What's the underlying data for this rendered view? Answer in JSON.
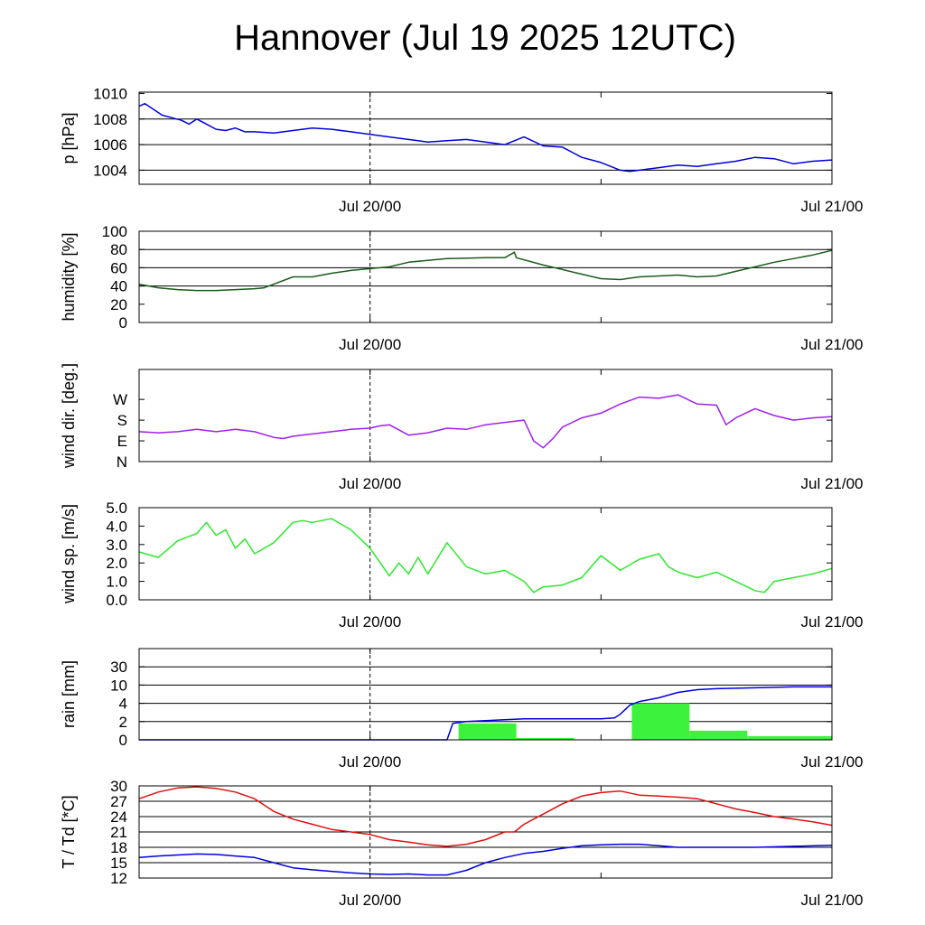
{
  "title": "Hannover (Jul 19 2025 12UTC)",
  "x_tick_labels": [
    "Jul 20/00",
    "Jul 21/00"
  ],
  "chart_data": [
    {
      "id": "pressure",
      "type": "line",
      "ylabel": "p [hPa]",
      "xlim_hours": [
        0,
        36
      ],
      "ylim": [
        1002.9,
        1010.1
      ],
      "yticks": [
        1004,
        1006,
        1008,
        1010
      ],
      "ytick_labels": [
        "1004",
        "1006",
        "1008",
        "1010"
      ],
      "grid_y": [
        1004,
        1006,
        1008
      ],
      "series": [
        {
          "color": "#0000e0",
          "x": [
            0,
            0.3,
            0.7,
            1.2,
            1.7,
            2.2,
            2.6,
            3.0,
            3.5,
            4.0,
            4.5,
            5.0,
            5.5,
            6.0,
            7.0,
            8.0,
            9.0,
            10.0,
            11.0,
            12.0,
            13.0,
            14.0,
            15.0,
            16.0,
            17.0,
            18.0,
            19.0,
            20.0,
            21.0,
            22.0,
            23.0,
            24.0,
            25.0,
            25.5,
            26.0,
            27.0,
            28.0,
            29.0,
            30.0,
            31.0,
            32.0,
            33.0,
            34.0,
            35.0,
            36.0
          ],
          "y": [
            1009.0,
            1009.2,
            1008.8,
            1008.3,
            1008.1,
            1007.9,
            1007.6,
            1008.0,
            1007.6,
            1007.2,
            1007.1,
            1007.3,
            1007.0,
            1007.0,
            1006.9,
            1007.1,
            1007.3,
            1007.2,
            1007.0,
            1006.8,
            1006.6,
            1006.4,
            1006.2,
            1006.3,
            1006.4,
            1006.2,
            1006.0,
            1006.6,
            1005.9,
            1005.8,
            1005.0,
            1004.6,
            1004.0,
            1003.9,
            1004.0,
            1004.2,
            1004.4,
            1004.3,
            1004.5,
            1004.7,
            1005.0,
            1004.9,
            1004.5,
            1004.7,
            1004.8
          ]
        }
      ]
    },
    {
      "id": "humidity",
      "type": "line",
      "ylabel": "humidity [%]",
      "xlim_hours": [
        0,
        36
      ],
      "ylim": [
        0,
        100
      ],
      "yticks": [
        0,
        20,
        40,
        60,
        80,
        100
      ],
      "ytick_labels": [
        "0",
        "20",
        "40",
        "60",
        "80",
        "100"
      ],
      "grid_y": [
        40,
        60,
        80,
        100
      ],
      "series": [
        {
          "color": "#1a5c1a",
          "x": [
            0,
            1,
            2,
            3,
            4,
            5,
            6,
            6.5,
            7,
            8,
            9,
            10,
            11,
            12,
            13,
            14,
            16,
            18,
            19,
            19.5,
            19.6,
            21,
            22,
            23,
            24,
            25,
            26,
            27,
            28,
            29,
            30,
            31,
            32,
            33,
            34,
            35,
            36
          ],
          "y": [
            42,
            38,
            36,
            35,
            35,
            36,
            37,
            38,
            42,
            50,
            50,
            54,
            57,
            59,
            61,
            66,
            70,
            71,
            71,
            77,
            71,
            63,
            58,
            53,
            48,
            47,
            50,
            51,
            52,
            50,
            51,
            56,
            61,
            66,
            70,
            74,
            79
          ]
        }
      ]
    },
    {
      "id": "wind_direction",
      "type": "line",
      "ylabel": "wind dir. [deg.]",
      "xlim_hours": [
        0,
        36
      ],
      "ylim": [
        0,
        400
      ],
      "yticks": [
        0,
        90,
        180,
        270
      ],
      "ytick_labels": [
        "N",
        "E",
        "S",
        "W"
      ],
      "grid_y": [],
      "series": [
        {
          "color": "#a020f0",
          "x": [
            0,
            1,
            2,
            3,
            4,
            5,
            6,
            7,
            7.5,
            8,
            9,
            10,
            11,
            12,
            12.5,
            13,
            14,
            15,
            16,
            17,
            18,
            19,
            20,
            20.5,
            21,
            21.5,
            22,
            23,
            24,
            25,
            26,
            27,
            28,
            29,
            30,
            30.5,
            31,
            32,
            33,
            34,
            35,
            36
          ],
          "y": [
            130,
            125,
            130,
            140,
            130,
            140,
            130,
            105,
            100,
            110,
            120,
            130,
            140,
            145,
            155,
            160,
            115,
            125,
            145,
            140,
            160,
            170,
            180,
            90,
            60,
            100,
            150,
            190,
            210,
            250,
            280,
            275,
            290,
            250,
            245,
            160,
            190,
            230,
            200,
            180,
            190,
            195
          ]
        }
      ]
    },
    {
      "id": "wind_speed",
      "type": "line",
      "ylabel": "wind sp. [m/s]",
      "xlim_hours": [
        0,
        36
      ],
      "ylim": [
        0,
        5
      ],
      "yticks": [
        0,
        1,
        2,
        3,
        4,
        5
      ],
      "ytick_labels": [
        "0.0",
        "1.0",
        "2.0",
        "3.0",
        "4.0",
        "5.0"
      ],
      "grid_y": [],
      "series": [
        {
          "color": "#2ee82e",
          "x": [
            0,
            1,
            2,
            3,
            3.5,
            4,
            4.5,
            5,
            5.5,
            6,
            7,
            8,
            8.5,
            9,
            10,
            11,
            12,
            13,
            13.5,
            14,
            14.5,
            15,
            16,
            17,
            18,
            19,
            20,
            20.5,
            21,
            22,
            23,
            24,
            25,
            26,
            27,
            27.5,
            28,
            29,
            30,
            31,
            32,
            32.5,
            33,
            34,
            35,
            36
          ],
          "y": [
            2.6,
            2.3,
            3.2,
            3.6,
            4.2,
            3.5,
            3.8,
            2.8,
            3.3,
            2.5,
            3.1,
            4.2,
            4.3,
            4.2,
            4.4,
            3.8,
            2.8,
            1.3,
            2.0,
            1.4,
            2.3,
            1.4,
            3.1,
            1.8,
            1.4,
            1.6,
            1.0,
            0.4,
            0.7,
            0.8,
            1.2,
            2.4,
            1.6,
            2.2,
            2.5,
            1.8,
            1.5,
            1.2,
            1.5,
            1.0,
            0.5,
            0.4,
            1.0,
            1.2,
            1.4,
            1.7
          ]
        }
      ]
    },
    {
      "id": "rain",
      "type": "bar+line",
      "ylabel": "rain [mm]",
      "xlim_hours": [
        0,
        36
      ],
      "ylim": [
        0,
        5
      ],
      "yticks": [
        0,
        1,
        2,
        3,
        4,
        5
      ],
      "ytick_labels": [
        "0",
        "2",
        "4",
        "10",
        "30",
        ""
      ],
      "grid_y": [
        1,
        2,
        3,
        4
      ],
      "bars": [
        {
          "x_start": 16.6,
          "x_end": 19.6,
          "value": 0.9
        },
        {
          "x_start": 19.6,
          "x_end": 22.6,
          "value": 0.1
        },
        {
          "x_start": 25.6,
          "x_end": 28.6,
          "value": 2.0
        },
        {
          "x_start": 28.6,
          "x_end": 31.6,
          "value": 0.5
        },
        {
          "x_start": 31.6,
          "x_end": 36,
          "value": 0.2
        }
      ],
      "bar_color": "#3cf23c",
      "series": [
        {
          "color": "#0000e0",
          "x": [
            0,
            16,
            16.3,
            17,
            19,
            20,
            21,
            22,
            23,
            24,
            24.7,
            25.0,
            25.5,
            26,
            27,
            28,
            29,
            30,
            32,
            34,
            36
          ],
          "y": [
            0,
            0,
            0.9,
            1.0,
            1.1,
            1.15,
            1.15,
            1.15,
            1.15,
            1.15,
            1.2,
            1.4,
            1.9,
            2.1,
            2.3,
            2.6,
            2.75,
            2.8,
            2.85,
            2.9,
            2.9
          ]
        }
      ]
    },
    {
      "id": "temperature",
      "type": "line",
      "ylabel": "T / Td [*C]",
      "xlim_hours": [
        0,
        36
      ],
      "ylim": [
        12,
        30
      ],
      "yticks": [
        12,
        15,
        18,
        21,
        24,
        27,
        30
      ],
      "ytick_labels": [
        "12",
        "15",
        "18",
        "21",
        "24",
        "27",
        "30"
      ],
      "grid_y": [
        15,
        18,
        21,
        24,
        27,
        30
      ],
      "series": [
        {
          "name": "T",
          "color": "#e01010",
          "x": [
            0,
            1,
            2,
            3,
            4,
            5,
            6,
            7,
            8,
            9,
            10,
            11,
            12,
            13,
            14,
            15,
            16,
            17,
            18,
            19,
            19.5,
            20,
            21,
            22,
            23,
            24,
            25,
            26,
            27,
            28,
            29,
            30,
            31,
            32,
            33,
            34,
            35,
            36
          ],
          "y": [
            27.5,
            28.8,
            29.6,
            29.8,
            29.5,
            28.8,
            27.5,
            25.0,
            23.5,
            22.5,
            21.5,
            21.0,
            20.5,
            19.5,
            19.0,
            18.5,
            18.2,
            18.6,
            19.5,
            21.0,
            21.0,
            22.5,
            24.5,
            26.5,
            28.0,
            28.7,
            29.0,
            28.2,
            28.0,
            27.8,
            27.5,
            26.5,
            25.5,
            24.8,
            24.0,
            23.5,
            23.0,
            22.3
          ]
        },
        {
          "name": "Td",
          "color": "#0000e0",
          "x": [
            0,
            1,
            2,
            3,
            4,
            5,
            6,
            7,
            8,
            9,
            10,
            11,
            12,
            13,
            14,
            15,
            16,
            17,
            18,
            19,
            20,
            21,
            22,
            23,
            24,
            25,
            26,
            27,
            28,
            29,
            30,
            32,
            34,
            36
          ],
          "y": [
            16.0,
            16.3,
            16.5,
            16.7,
            16.6,
            16.3,
            16.0,
            15.0,
            14.0,
            13.6,
            13.3,
            13.0,
            12.8,
            12.7,
            12.8,
            12.6,
            12.6,
            13.5,
            15.0,
            16.0,
            16.8,
            17.2,
            17.8,
            18.3,
            18.5,
            18.6,
            18.6,
            18.3,
            18.0,
            18.0,
            18.0,
            18.0,
            18.2,
            18.4
          ]
        }
      ]
    }
  ]
}
